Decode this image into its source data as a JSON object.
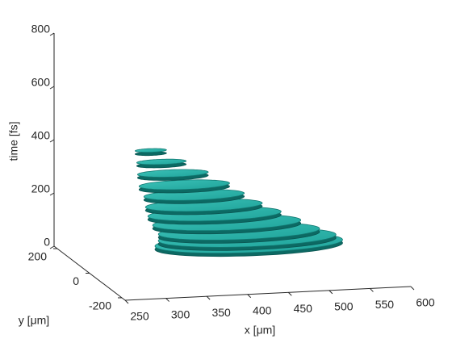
{
  "chart_data": {
    "type": "slices3d",
    "xlabel": "x [μm]",
    "ylabel": "y [μm]",
    "zlabel": "time [fs]",
    "xlim": [
      250,
      600
    ],
    "ylim": [
      -220,
      220
    ],
    "zlim": [
      0,
      800
    ],
    "xticks": [
      250,
      300,
      350,
      400,
      450,
      500,
      550,
      600
    ],
    "yticks": [
      -200,
      0,
      200
    ],
    "zticks": [
      0,
      200,
      400,
      600,
      800
    ],
    "color": "#1fa39a",
    "slices": [
      {
        "time": 85,
        "x": 445,
        "x_radius": 114,
        "y_radius": 75
      },
      {
        "time": 105,
        "x": 443,
        "x_radius": 108,
        "y_radius": 70
      },
      {
        "time": 130,
        "x": 433,
        "x_radius": 98,
        "y_radius": 63
      },
      {
        "time": 165,
        "x": 418,
        "x_radius": 90,
        "y_radius": 58
      },
      {
        "time": 200,
        "x": 403,
        "x_radius": 81,
        "y_radius": 52
      },
      {
        "time": 235,
        "x": 390,
        "x_radius": 71,
        "y_radius": 46
      },
      {
        "time": 275,
        "x": 378,
        "x_radius": 61,
        "y_radius": 40
      },
      {
        "time": 315,
        "x": 366,
        "x_radius": 55,
        "y_radius": 36
      },
      {
        "time": 360,
        "x": 352,
        "x_radius": 43,
        "y_radius": 28
      },
      {
        "time": 405,
        "x": 338,
        "x_radius": 30,
        "y_radius": 20
      },
      {
        "time": 450,
        "x": 325,
        "x_radius": 19,
        "y_radius": 14
      }
    ]
  }
}
